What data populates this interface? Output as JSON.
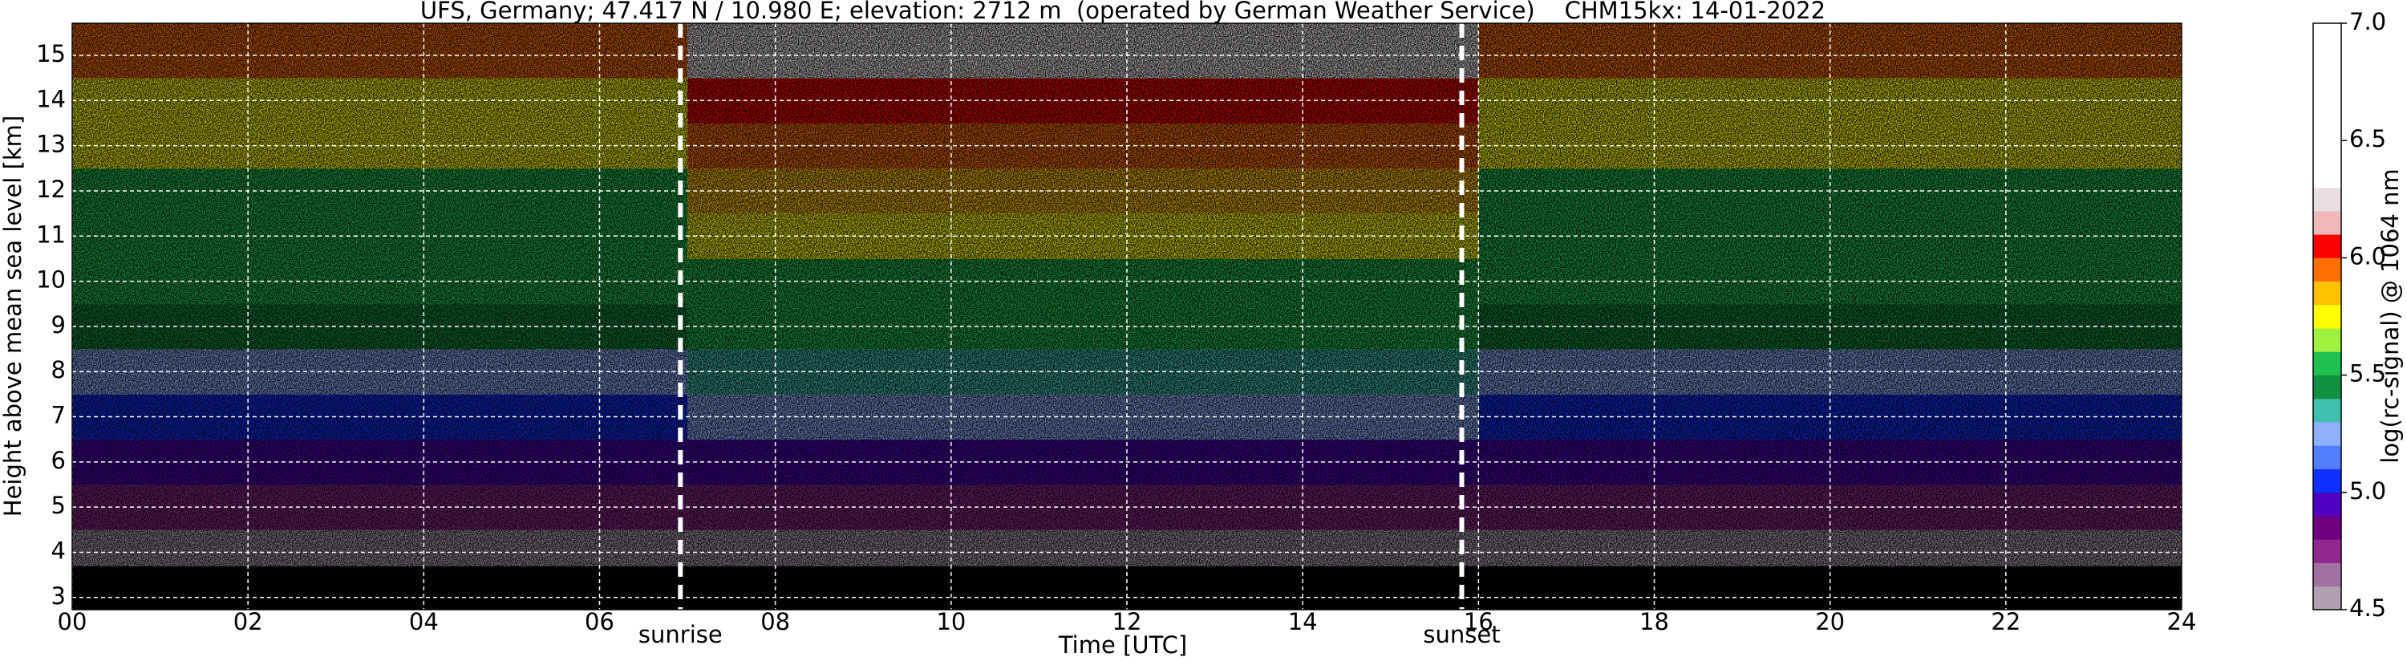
{
  "chart_data": {
    "type": "heatmap",
    "title": "UFS, Germany; 47.417 N / 10.980 E; elevation: 2712 m  (operated by German Weather Service)    CHM15kx: 14-01-2022",
    "xlabel": "Time [UTC]",
    "ylabel": "Height above mean sea level [km]",
    "colorbar_label": "log(rc-signal) @ 1064 nm",
    "xlim": [
      0,
      24
    ],
    "xticks": [
      {
        "value": 0,
        "label": "00"
      },
      {
        "value": 2,
        "label": "02"
      },
      {
        "value": 4,
        "label": "04"
      },
      {
        "value": 6,
        "label": "06"
      },
      {
        "value": 8,
        "label": "08"
      },
      10,
      12,
      14,
      16,
      18,
      20,
      22,
      24
    ],
    "ylim": [
      2.73,
      15.71
    ],
    "yticks": [
      3,
      4,
      5,
      6,
      7,
      8,
      9,
      10,
      11,
      12,
      13,
      14,
      15
    ],
    "clim": [
      4.5,
      7.0
    ],
    "cticks": [
      4.5,
      {
        "value": 5,
        "label": "5.0"
      },
      5.5,
      {
        "value": 6,
        "label": "6.0"
      },
      6.5,
      {
        "value": 7,
        "label": "7.0"
      }
    ],
    "colors": [
      "#b0a0b0",
      "#a070a0",
      "#902890",
      "#700080",
      "#5000c0",
      "#1030ff",
      "#5080ff",
      "#90b0ff",
      "#40c0b0",
      "#109040",
      "#20c050",
      "#a0f040",
      "#ffff00",
      "#ffc000",
      "#ff7000",
      "#ff0000",
      "#f0b8b8",
      "#e8e0e0",
      "#ffffff",
      "#ffffff",
      "#ffffff",
      "#ffffff",
      "#ffffff",
      "#ffffff",
      "#ffffff"
    ],
    "grid": true,
    "x_edges": [
      0,
      4,
      7,
      10,
      13,
      16,
      20,
      24
    ],
    "y_edges": [
      2.73,
      3.7,
      4.5,
      5.5,
      6.5,
      7.5,
      8.5,
      9.5,
      10.5,
      11.5,
      12.5,
      13.5,
      14.5,
      15.71
    ],
    "z": [
      [
        null,
        null,
        null,
        null,
        null,
        null,
        null
      ],
      [
        4.55,
        4.55,
        4.6,
        4.6,
        4.6,
        4.55,
        4.55
      ],
      [
        4.75,
        4.75,
        4.8,
        4.8,
        4.8,
        4.75,
        4.75
      ],
      [
        4.95,
        4.95,
        4.95,
        4.95,
        4.95,
        4.95,
        4.95
      ],
      [
        5.1,
        5.1,
        5.2,
        5.2,
        5.2,
        5.1,
        5.1
      ],
      [
        5.25,
        5.25,
        5.35,
        5.35,
        5.35,
        5.25,
        5.25
      ],
      [
        5.4,
        5.4,
        5.5,
        5.5,
        5.5,
        5.4,
        5.4
      ],
      [
        5.5,
        5.5,
        5.6,
        5.6,
        5.6,
        5.5,
        5.5
      ],
      [
        5.55,
        5.55,
        5.75,
        5.75,
        5.75,
        5.55,
        5.55
      ],
      [
        5.6,
        5.6,
        5.85,
        5.85,
        5.85,
        5.6,
        5.6
      ],
      [
        5.7,
        5.7,
        5.95,
        5.95,
        5.95,
        5.7,
        5.7
      ],
      [
        5.8,
        5.8,
        6.1,
        6.1,
        6.1,
        5.8,
        5.8
      ],
      [
        5.9,
        5.9,
        6.3,
        6.3,
        6.3,
        5.9,
        5.9
      ]
    ],
    "annotations": [
      {
        "x": 6.92,
        "label": "sunrise"
      },
      {
        "x": 15.81,
        "label": "sunset"
      }
    ]
  }
}
